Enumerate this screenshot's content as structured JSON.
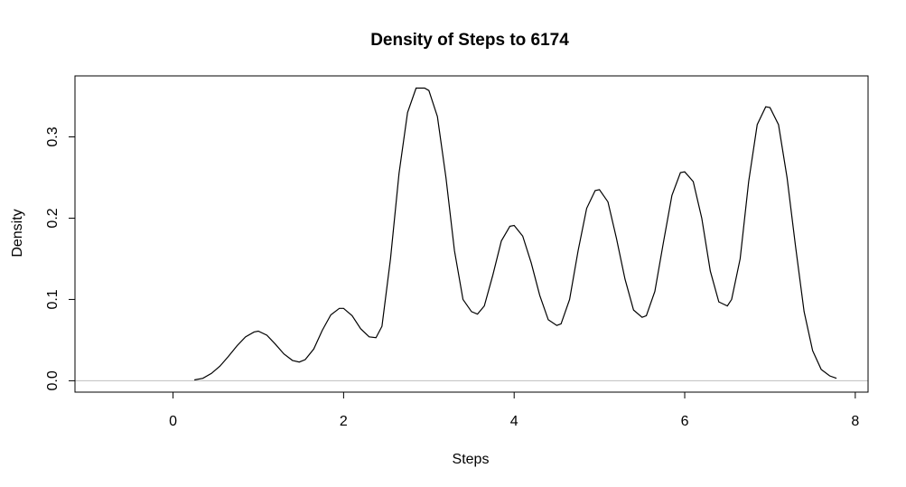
{
  "chart_data": {
    "type": "line",
    "title": "Density of Steps to 6174",
    "xlabel": "Steps",
    "ylabel": "Density",
    "xlim": [
      -1.15,
      8.15
    ],
    "ylim": [
      -0.014,
      0.375
    ],
    "x_ticks": [
      0,
      2,
      4,
      6,
      8
    ],
    "x_tick_labels": [
      "0",
      "2",
      "4",
      "6",
      "8"
    ],
    "y_ticks": [
      0.0,
      0.1,
      0.2,
      0.3
    ],
    "y_tick_labels": [
      "0.0",
      "0.1",
      "0.2",
      "0.3"
    ],
    "grid": false,
    "reference_line": {
      "y": 0,
      "color": "#bebebe"
    },
    "colors": {
      "line": "#000000",
      "axes": "#000000",
      "baseline": "#bebebe"
    },
    "series": [
      {
        "x": [
          0.25,
          0.35,
          0.45,
          0.55,
          0.65,
          0.75,
          0.85,
          0.95,
          1.0,
          1.1,
          1.2,
          1.3,
          1.4,
          1.48,
          1.55,
          1.65,
          1.75,
          1.85,
          1.95,
          2.0,
          2.1,
          2.2,
          2.3,
          2.38,
          2.45,
          2.55,
          2.65,
          2.75,
          2.85,
          2.95,
          3.0,
          3.1,
          3.2,
          3.3,
          3.4,
          3.5,
          3.57,
          3.65,
          3.75,
          3.85,
          3.95,
          4.0,
          4.1,
          4.2,
          4.3,
          4.4,
          4.5,
          4.55,
          4.65,
          4.75,
          4.85,
          4.95,
          5.0,
          5.1,
          5.2,
          5.3,
          5.4,
          5.5,
          5.55,
          5.65,
          5.75,
          5.85,
          5.95,
          6.0,
          6.1,
          6.2,
          6.3,
          6.4,
          6.5,
          6.55,
          6.65,
          6.75,
          6.85,
          6.95,
          7.0,
          7.1,
          7.2,
          7.3,
          7.4,
          7.5,
          7.6,
          7.7,
          7.78
        ],
        "y": [
          0.001,
          0.003,
          0.009,
          0.018,
          0.03,
          0.043,
          0.054,
          0.06,
          0.061,
          0.056,
          0.045,
          0.033,
          0.025,
          0.023,
          0.026,
          0.039,
          0.062,
          0.081,
          0.089,
          0.089,
          0.08,
          0.064,
          0.054,
          0.053,
          0.067,
          0.15,
          0.255,
          0.33,
          0.36,
          0.36,
          0.357,
          0.325,
          0.25,
          0.16,
          0.1,
          0.085,
          0.082,
          0.092,
          0.13,
          0.172,
          0.19,
          0.191,
          0.178,
          0.145,
          0.105,
          0.075,
          0.068,
          0.07,
          0.1,
          0.16,
          0.212,
          0.234,
          0.235,
          0.22,
          0.175,
          0.125,
          0.087,
          0.078,
          0.08,
          0.11,
          0.17,
          0.228,
          0.256,
          0.257,
          0.245,
          0.2,
          0.135,
          0.097,
          0.092,
          0.1,
          0.15,
          0.245,
          0.315,
          0.337,
          0.336,
          0.315,
          0.25,
          0.165,
          0.085,
          0.037,
          0.014,
          0.006,
          0.003
        ]
      }
    ]
  }
}
